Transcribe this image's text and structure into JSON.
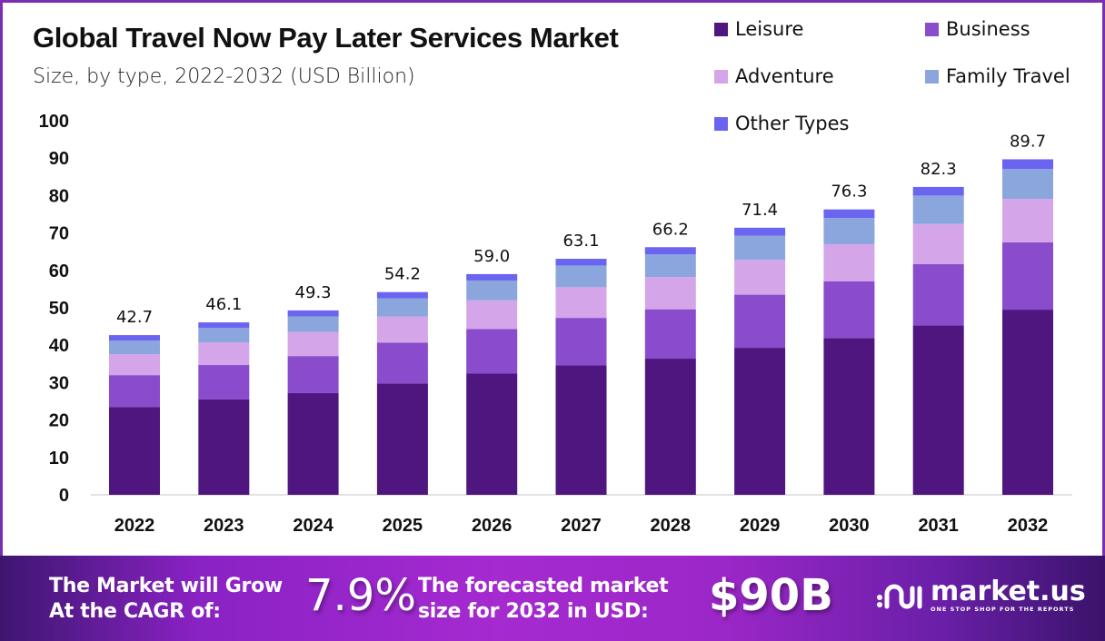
{
  "header": {
    "title": "Global Travel Now Pay Later Services Market",
    "subtitle": "Size, by type, 2022-2032 (USD Billion)"
  },
  "chart_data": {
    "type": "bar",
    "stacked": true,
    "title": "Global Travel Now Pay Later Services Market",
    "subtitle": "Size, by type, 2022-2032 (USD Billion)",
    "xlabel": "",
    "ylabel": "",
    "ylim": [
      0,
      100
    ],
    "yticks": [
      0,
      10,
      20,
      30,
      40,
      50,
      60,
      70,
      80,
      90,
      100
    ],
    "grid": false,
    "legend_position": "top-right",
    "categories": [
      "2022",
      "2023",
      "2024",
      "2025",
      "2026",
      "2027",
      "2028",
      "2029",
      "2030",
      "2031",
      "2032"
    ],
    "totals": [
      42.7,
      46.1,
      49.3,
      54.2,
      59.0,
      63.1,
      66.2,
      71.4,
      76.3,
      82.3,
      89.7
    ],
    "total_labels": [
      "42.7",
      "46.1",
      "49.3",
      "54.2",
      "59.0",
      "63.1",
      "66.2",
      "71.4",
      "76.3",
      "82.3",
      "89.7"
    ],
    "series": [
      {
        "name": "Leisure",
        "color": "#4f1680",
        "values": [
          23.5,
          25.5,
          27.2,
          29.8,
          32.4,
          34.6,
          36.4,
          39.3,
          41.9,
          45.3,
          49.5
        ]
      },
      {
        "name": "Business",
        "color": "#8a4bcc",
        "values": [
          8.5,
          9.2,
          9.9,
          10.9,
          11.9,
          12.7,
          13.2,
          14.2,
          15.2,
          16.4,
          18.0
        ]
      },
      {
        "name": "Adventure",
        "color": "#d4a5e8",
        "values": [
          5.6,
          6.0,
          6.4,
          7.0,
          7.7,
          8.2,
          8.6,
          9.3,
          9.9,
          10.7,
          11.6
        ]
      },
      {
        "name": "Family Travel",
        "color": "#8aa6dc",
        "values": [
          3.6,
          3.9,
          4.2,
          4.8,
          5.3,
          5.8,
          6.1,
          6.5,
          7.0,
          7.6,
          8.0
        ]
      },
      {
        "name": "Other Types",
        "color": "#6b64f0",
        "values": [
          1.5,
          1.5,
          1.6,
          1.7,
          1.7,
          1.8,
          1.9,
          2.1,
          2.3,
          2.3,
          2.6
        ]
      }
    ]
  },
  "footer": {
    "cagr_text_line1": "The Market will Grow",
    "cagr_text_line2": "At the CAGR of:",
    "cagr_value": "7.9%",
    "forecast_text_line1": "The forecasted market",
    "forecast_text_line2": "size for 2032 in USD:",
    "forecast_value": "$90B",
    "logo_name": "market.us",
    "logo_tagline": "ONE STOP SHOP FOR THE REPORTS"
  }
}
